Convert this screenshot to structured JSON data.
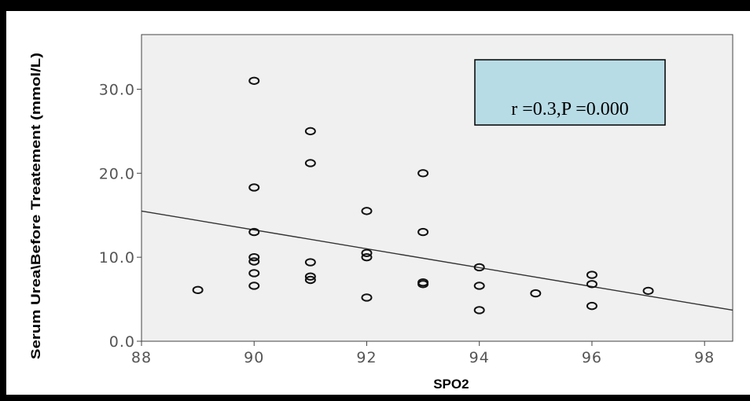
{
  "chart_data": {
    "type": "scatter",
    "title": "",
    "xlabel": "SPO2",
    "ylabel": "Serum Urea\\Before Treatement (mmol/L)",
    "xlim": [
      88,
      98.5
    ],
    "ylim": [
      0,
      36.5
    ],
    "xticks": [
      88,
      90,
      92,
      94,
      96,
      98
    ],
    "yticks": [
      0,
      10,
      20,
      30
    ],
    "xtick_labels": [
      "88",
      "90",
      "92",
      "94",
      "96",
      "98"
    ],
    "ytick_labels": [
      "0.0",
      "10.0",
      "20.0",
      "30.0"
    ],
    "grid": false,
    "background": "#f0f0f0",
    "annotation": "r =0.3,P =0.000",
    "annotation_background": "#b8dce6",
    "fit_line": {
      "x": [
        88,
        98.5
      ],
      "y": [
        15.5,
        3.7
      ]
    },
    "points": [
      {
        "x": 89,
        "y": 6.1
      },
      {
        "x": 90,
        "y": 31.0
      },
      {
        "x": 90,
        "y": 18.3
      },
      {
        "x": 90,
        "y": 13.0
      },
      {
        "x": 90,
        "y": 10.0
      },
      {
        "x": 90,
        "y": 9.5
      },
      {
        "x": 90,
        "y": 8.1
      },
      {
        "x": 90,
        "y": 6.6
      },
      {
        "x": 91,
        "y": 25.0
      },
      {
        "x": 91,
        "y": 21.2
      },
      {
        "x": 91,
        "y": 9.4
      },
      {
        "x": 91,
        "y": 7.7
      },
      {
        "x": 91,
        "y": 7.3
      },
      {
        "x": 92,
        "y": 15.5
      },
      {
        "x": 92,
        "y": 10.5
      },
      {
        "x": 92,
        "y": 10.0
      },
      {
        "x": 92,
        "y": 5.2
      },
      {
        "x": 93,
        "y": 20.0
      },
      {
        "x": 93,
        "y": 13.0
      },
      {
        "x": 93,
        "y": 7.0
      },
      {
        "x": 93,
        "y": 6.8
      },
      {
        "x": 94,
        "y": 8.8
      },
      {
        "x": 94,
        "y": 6.6
      },
      {
        "x": 94,
        "y": 3.7
      },
      {
        "x": 95,
        "y": 5.7
      },
      {
        "x": 96,
        "y": 7.9
      },
      {
        "x": 96,
        "y": 6.8
      },
      {
        "x": 96,
        "y": 4.2
      },
      {
        "x": 97,
        "y": 6.0
      }
    ]
  }
}
